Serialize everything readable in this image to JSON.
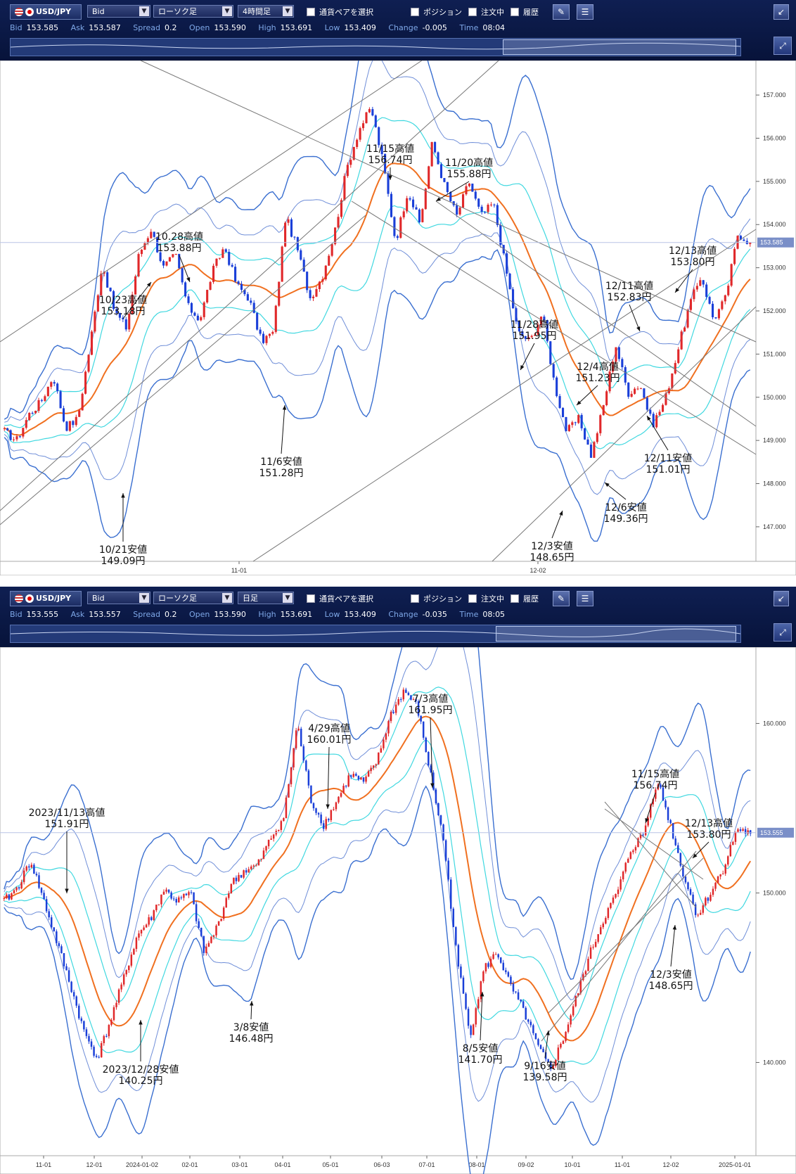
{
  "panels": [
    {
      "pair": "USD/JPY",
      "price_type": "Bid",
      "chart_type": "ローソク足",
      "timeframe": "4時間足",
      "pair_select": "通貨ペアを選択",
      "checks": [
        "ポジション",
        "注文中",
        "履歴"
      ],
      "quote": {
        "bid": "153.585",
        "ask": "153.587",
        "spread": "0.2",
        "open": "153.590",
        "high": "153.691",
        "low": "153.409",
        "change": "-0.005",
        "time": "08:04"
      },
      "current_price": "153.585"
    },
    {
      "pair": "USD/JPY",
      "price_type": "Bid",
      "chart_type": "ローソク足",
      "timeframe": "日足",
      "pair_select": "通貨ペアを選択",
      "checks": [
        "ポジション",
        "注文中",
        "履歴"
      ],
      "quote": {
        "bid": "153.555",
        "ask": "153.557",
        "spread": "0.2",
        "open": "153.590",
        "high": "153.691",
        "low": "153.409",
        "change": "-0.035",
        "time": "08:05"
      },
      "current_price": "153.555"
    }
  ],
  "quote_labels": {
    "bid": "Bid",
    "ask": "Ask",
    "spread": "Spread",
    "open": "Open",
    "high": "High",
    "low": "Low",
    "change": "Change",
    "time": "Time"
  },
  "colors": {
    "up": "#e0282a",
    "down": "#1a3fd8",
    "ma": "#f07020",
    "band1": "#40d8e0",
    "band2": "#6f8ed8",
    "band3": "#3a6fd0",
    "toolbar": "#0f1f52"
  },
  "chart_data": [
    {
      "type": "candlestick",
      "title": "",
      "ylim": [
        146.2,
        157.8
      ],
      "yticks": [
        "147.000",
        "148.000",
        "149.000",
        "150.000",
        "151.000",
        "152.000",
        "153.000",
        "154.000",
        "155.000",
        "156.000",
        "157.000"
      ],
      "xticks": [
        "11-01",
        "12-02"
      ],
      "annotations": [
        {
          "label": "10/21安値",
          "price": "149.09円",
          "value": 149.09
        },
        {
          "label": "10/23高値",
          "price": "153.18円",
          "value": 153.18
        },
        {
          "label": "10.28高値",
          "price": "153.88円",
          "value": 153.88
        },
        {
          "label": "11/6安値",
          "price": "151.28円",
          "value": 151.28
        },
        {
          "label": "11/15高値",
          "price": "156.74円",
          "value": 156.74
        },
        {
          "label": "11/20高値",
          "price": "155.88円",
          "value": 155.88
        },
        {
          "label": "11/28高値",
          "price": "151.95円",
          "value": 151.95
        },
        {
          "label": "12/3安値",
          "price": "148.65円",
          "value": 148.65
        },
        {
          "label": "12/4高値",
          "price": "151.23円",
          "value": 151.23
        },
        {
          "label": "12/6安値",
          "price": "149.36円",
          "value": 149.36
        },
        {
          "label": "12/11高値",
          "price": "152.83円",
          "value": 152.83
        },
        {
          "label": "12/11安値",
          "price": "151.01円",
          "value": 151.01
        },
        {
          "label": "12/13高値",
          "price": "153.80円",
          "value": 153.8
        }
      ],
      "path": [
        149.2,
        149.0,
        149.6,
        149.9,
        150.5,
        149.3,
        149.5,
        151.2,
        153.1,
        152.0,
        151.6,
        153.3,
        153.9,
        153.0,
        153.3,
        152.1,
        151.8,
        152.9,
        153.5,
        152.6,
        152.3,
        151.3,
        151.5,
        154.2,
        153.4,
        152.3,
        152.8,
        153.8,
        155.3,
        156.2,
        156.7,
        155.4,
        153.6,
        154.8,
        154.0,
        155.9,
        154.9,
        154.2,
        155.0,
        154.2,
        154.5,
        153.0,
        151.5,
        151.3,
        151.95,
        150.3,
        149.2,
        149.5,
        148.65,
        149.8,
        151.23,
        150.1,
        150.3,
        149.36,
        149.9,
        151.0,
        152.1,
        152.83,
        151.8,
        152.3,
        153.8,
        153.58
      ]
    },
    {
      "type": "candlestick",
      "title": "",
      "ylim": [
        134.5,
        164.5
      ],
      "yticks": [
        "140.000",
        "150.000",
        "160.000"
      ],
      "xticks": [
        "11-01",
        "12-01",
        "2024-01-02",
        "02-01",
        "03-01",
        "04-01",
        "05-01",
        "06-03",
        "07-01",
        "08-01",
        "09-02",
        "10-01",
        "11-01",
        "12-02",
        "2025-01-01"
      ],
      "annotations": [
        {
          "label": "2023/11/13高値",
          "price": "151.91円",
          "value": 151.91
        },
        {
          "label": "2023/12/28安値",
          "price": "140.25円",
          "value": 140.25
        },
        {
          "label": "3/8安値",
          "price": "146.48円",
          "value": 146.48
        },
        {
          "label": "4/29高値",
          "price": "160.01円",
          "value": 160.01
        },
        {
          "label": "7/3高値",
          "price": "161.95円",
          "value": 161.95
        },
        {
          "label": "8/5安値",
          "price": "141.70円",
          "value": 141.7
        },
        {
          "label": "9/16安値",
          "price": "139.58円",
          "value": 139.58
        },
        {
          "label": "11/15高値",
          "price": "156.74円",
          "value": 156.74
        },
        {
          "label": "12/3安値",
          "price": "148.65円",
          "value": 148.65
        },
        {
          "label": "12/13高値",
          "price": "153.80円",
          "value": 153.8
        }
      ],
      "path": [
        149.5,
        150.3,
        151.91,
        149.5,
        147.0,
        144.5,
        141.8,
        140.25,
        142.5,
        145.0,
        147.5,
        148.5,
        150.2,
        149.5,
        150.0,
        146.48,
        148.0,
        150.5,
        151.3,
        151.6,
        153.2,
        154.5,
        160.01,
        155.5,
        154.0,
        155.5,
        157.0,
        156.5,
        157.8,
        160.5,
        161.95,
        161.0,
        157.0,
        153.0,
        146.0,
        141.7,
        145.5,
        146.5,
        144.5,
        143.0,
        141.0,
        139.58,
        141.5,
        144.0,
        146.5,
        148.5,
        150.0,
        152.5,
        153.5,
        156.74,
        154.0,
        151.0,
        148.65,
        150.0,
        151.5,
        153.8,
        153.5
      ]
    }
  ]
}
